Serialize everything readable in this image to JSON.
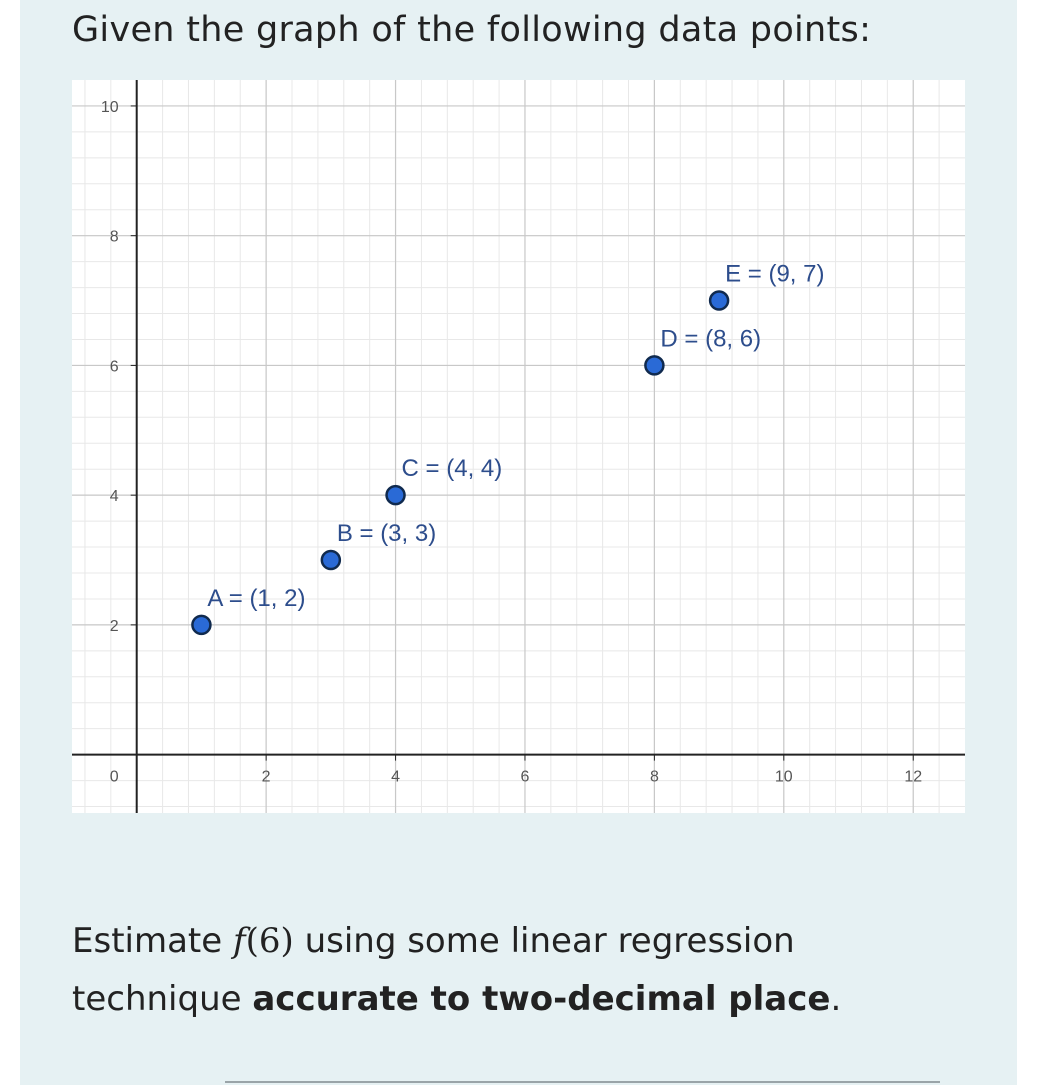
{
  "heading": "Given the graph of the following data points:",
  "question": {
    "line1_before": "Estimate ",
    "fn_name": "f",
    "fn_open": "(",
    "fn_arg": "6",
    "fn_close": ")",
    "line1_after": " using some linear regression",
    "line2_start": "technique ",
    "line2_bold": "accurate to two-decimal place",
    "line2_end": "."
  },
  "colors": {
    "panel": "#e6f1f3",
    "point_fill": "#2a6ad6",
    "point_stroke": "#102a4e",
    "grid_major": "#c8c8c8",
    "grid_minor": "#e8e8e8",
    "axis": "#222222"
  },
  "chart_data": {
    "type": "scatter",
    "title": "",
    "xlabel": "",
    "ylabel": "",
    "xlim": [
      -1,
      12.8
    ],
    "ylim": [
      -0.9,
      10.4
    ],
    "grid": true,
    "x_ticks": [
      2,
      4,
      6,
      8,
      10,
      12
    ],
    "y_ticks": [
      2,
      4,
      6,
      8,
      10
    ],
    "origin_label": "0",
    "points": [
      {
        "name": "A",
        "x": 1,
        "y": 2,
        "label": "A = (1, 2)"
      },
      {
        "name": "B",
        "x": 3,
        "y": 3,
        "label": "B = (3, 3)"
      },
      {
        "name": "C",
        "x": 4,
        "y": 4,
        "label": "C = (4, 4)"
      },
      {
        "name": "D",
        "x": 8,
        "y": 6,
        "label": "D = (8, 6)"
      },
      {
        "name": "E",
        "x": 9,
        "y": 7,
        "label": "E = (9, 7)"
      }
    ]
  }
}
